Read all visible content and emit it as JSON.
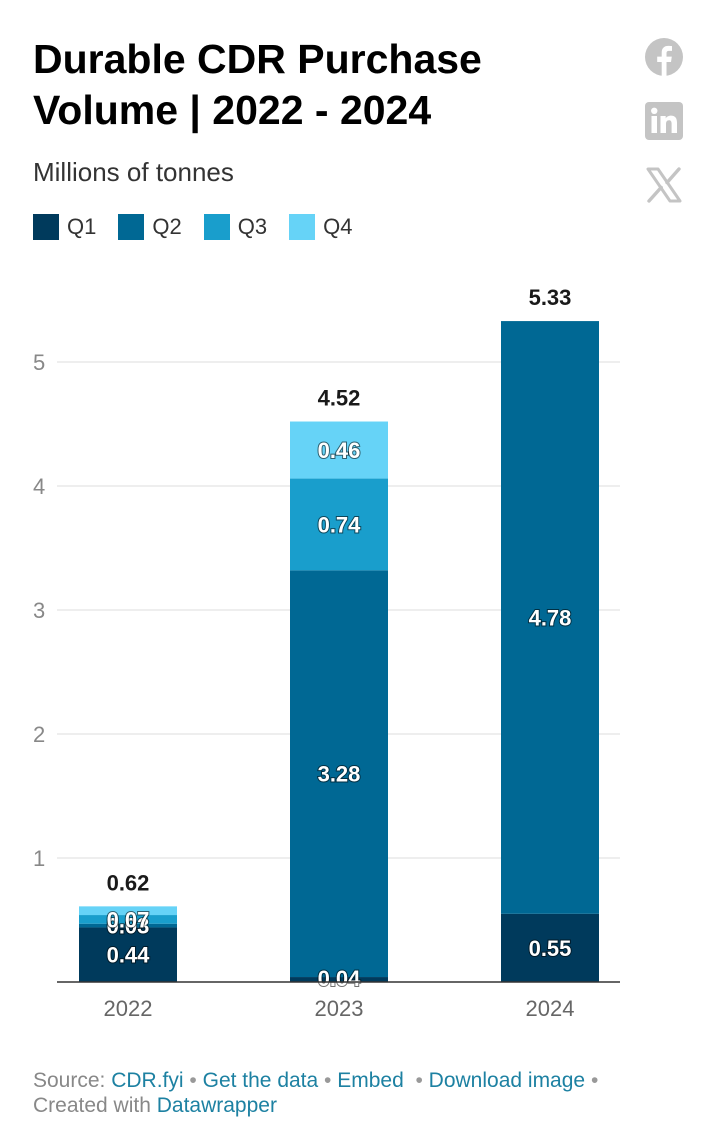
{
  "header": {
    "title": "Durable CDR Purchase Volume | 2022 - 2024",
    "subtitle": "Millions of tonnes"
  },
  "social": {
    "icons": [
      "facebook-icon",
      "linkedin-icon",
      "x-icon"
    ],
    "color": "#c4c4c4"
  },
  "chart_data": {
    "type": "bar",
    "stacked": true,
    "categories": [
      "2022",
      "2023",
      "2024"
    ],
    "series": [
      {
        "name": "Q1",
        "color": "#003a5c",
        "values": [
          0.44,
          0.04,
          0.55
        ]
      },
      {
        "name": "Q2",
        "color": "#006894",
        "values": [
          0.03,
          3.28,
          4.78
        ]
      },
      {
        "name": "Q3",
        "color": "#199ecc",
        "values": [
          0.07,
          0.74,
          0
        ]
      },
      {
        "name": "Q4",
        "color": "#66d3f7",
        "values": [
          0.07,
          0.46,
          0
        ]
      }
    ],
    "segment_labels": [
      [
        "0.44",
        "0.03",
        "0.07",
        ""
      ],
      [
        "0.04",
        "3.28",
        "0.74",
        "0.46"
      ],
      [
        "0.55",
        "4.78",
        "",
        ""
      ]
    ],
    "totals": [
      "0.62",
      "4.52",
      "5.33"
    ],
    "yticks": [
      1,
      2,
      3,
      4,
      5
    ],
    "ylim": [
      0,
      5.33
    ],
    "grid": true,
    "legend_position": "top-left",
    "xlabel": "",
    "ylabel": ""
  },
  "footer": {
    "source_label": "Source: ",
    "source_link": "CDR.fyi",
    "get_data": "Get the data",
    "embed": "Embed",
    "download": "Download image",
    "created_label": "Created with ",
    "created_link": "Datawrapper",
    "separator": "•"
  }
}
